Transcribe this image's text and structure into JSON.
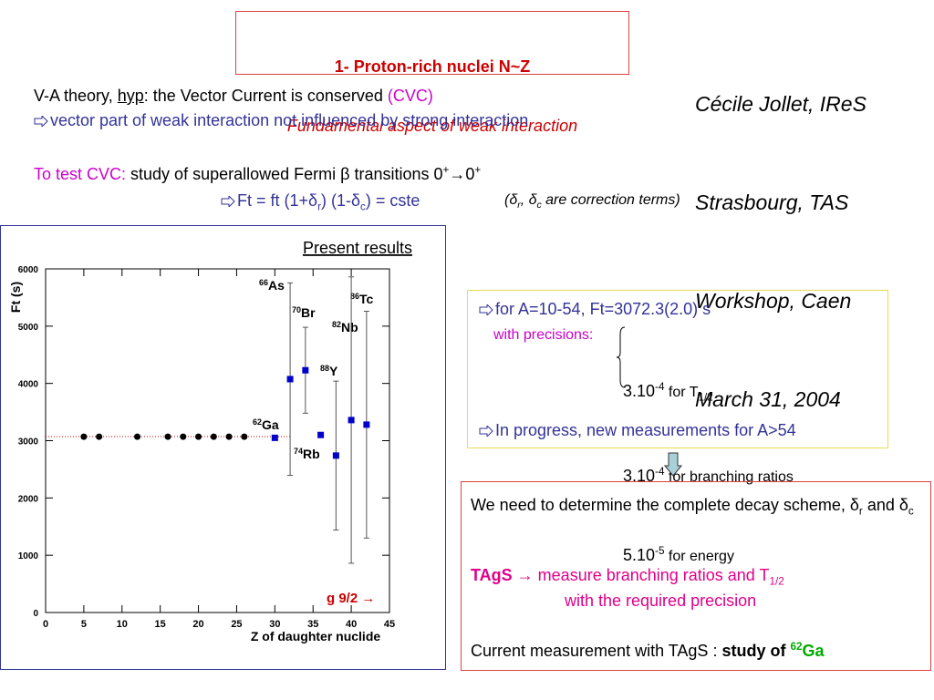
{
  "header": {
    "title": "1- Proton-rich nuclei N~Z",
    "subtitle": "Fundamental aspect of weak interaction"
  },
  "author": [
    "Cécile Jollet, IReS",
    "Strasbourg, TAS",
    "Workshop, Caen",
    "March 31, 2004"
  ],
  "intro": [
    [
      "V-A theory, ",
      "hyp",
      ": the Vector Current is conserved ",
      "(CVC)"
    ],
    [
      "vector part of weak interaction not influenced by strong interaction"
    ],
    [
      "To test CVC:",
      " study of superallowed Fermi β transitions 0",
      "+",
      "→0",
      "+"
    ],
    [
      "Ft = ft (1+δ",
      "r",
      ") (1-δ",
      "c",
      ") = cste"
    ],
    [
      "(δ",
      "r",
      ", δ",
      "c",
      " are correction terms)"
    ]
  ],
  "results_box": {
    "line1": "for A=10-54, Ft=3072.3(2.0) s",
    "precisions_label": "with precisions:",
    "precisions": [
      [
        "3.10",
        "-4",
        " for T",
        "1/2"
      ],
      [
        "3.10",
        "-4",
        " for branching ratios"
      ],
      [
        "5.10",
        "-5",
        " for energy"
      ]
    ],
    "line2": "In progress, new measurements for A>54"
  },
  "needs_box": {
    "line1": [
      "We need to determine the complete decay scheme, δ",
      "r",
      " and δ",
      "c"
    ],
    "line2": [
      "TAgS",
      " → measure branching ratios and T",
      "1/2"
    ],
    "line3": "with the required precision",
    "line4": [
      "Current measurement with TAgS : ",
      "study of ",
      "62",
      "Ga"
    ]
  },
  "chart_data": {
    "type": "scatter",
    "title": "Present results",
    "y_label": "Ft (s)",
    "x_label": "Z of daughter nuclide",
    "note": "g 9/2 →",
    "xlim": [
      0,
      45
    ],
    "xticks": [
      0,
      5,
      10,
      15,
      20,
      25,
      30,
      35,
      40,
      45
    ],
    "ylim": [
      0,
      6000
    ],
    "yticks": [
      0,
      1000,
      2000,
      3000,
      4000,
      5000,
      6000
    ],
    "reference_line": {
      "value": 3072.3,
      "color": "#cc0000"
    },
    "series": [
      {
        "color": "#000000",
        "marker": "circle",
        "x": [
          5,
          7,
          12,
          16,
          18,
          20,
          22,
          24,
          26
        ],
        "values": [
          3070,
          3070,
          3070,
          3070,
          3070,
          3070,
          3070,
          3070,
          3070
        ]
      },
      {
        "color": "#0000cc",
        "marker": "square",
        "x": [
          30,
          32,
          34,
          36,
          38,
          40,
          42
        ],
        "values": [
          3050,
          4075,
          4230,
          3100,
          2740,
          3360,
          3280
        ],
        "errors": [
          20,
          1680,
          750,
          20,
          1300,
          2500,
          1980
        ]
      }
    ],
    "annotations": [
      {
        "mass": "66",
        "symbol": "As"
      },
      {
        "mass": "70",
        "symbol": "Br"
      },
      {
        "mass": "86",
        "symbol": "Tc"
      },
      {
        "mass": "82",
        "symbol": "Nb"
      },
      {
        "mass": "88",
        "symbol": "Y"
      },
      {
        "mass": "62",
        "symbol": "Ga"
      },
      {
        "mass": "74",
        "symbol": "Rb"
      }
    ]
  }
}
